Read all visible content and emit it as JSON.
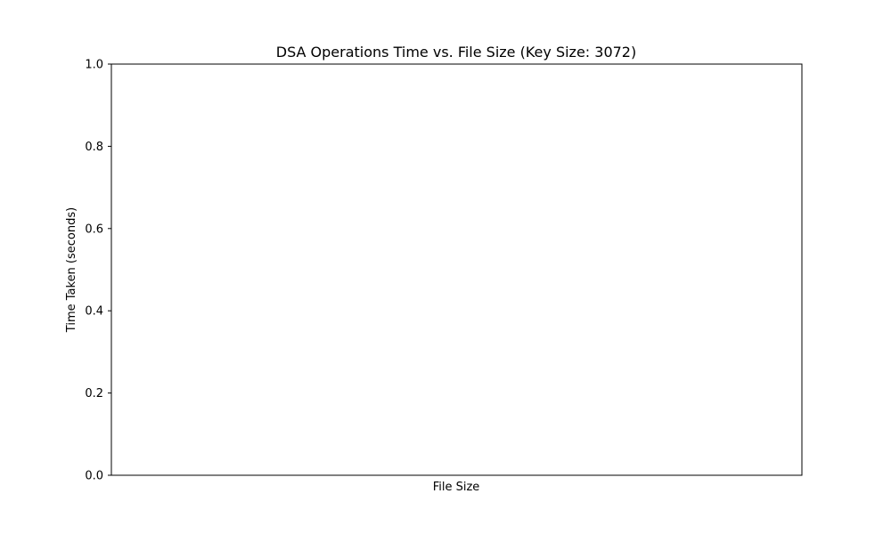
{
  "chart_data": {
    "type": "line",
    "title": "DSA Operations Time vs. File Size (Key Size: 3072)",
    "xlabel": "File Size",
    "ylabel": "Time Taken (seconds)",
    "ylim": [
      0,
      1
    ],
    "yticks": [
      "0.0",
      "0.2",
      "0.4",
      "0.6",
      "0.8",
      "1.0"
    ],
    "xticks": [],
    "series": [],
    "grid": false,
    "legend": "none"
  },
  "colors": {
    "axis": "#000000",
    "background": "#ffffff"
  }
}
